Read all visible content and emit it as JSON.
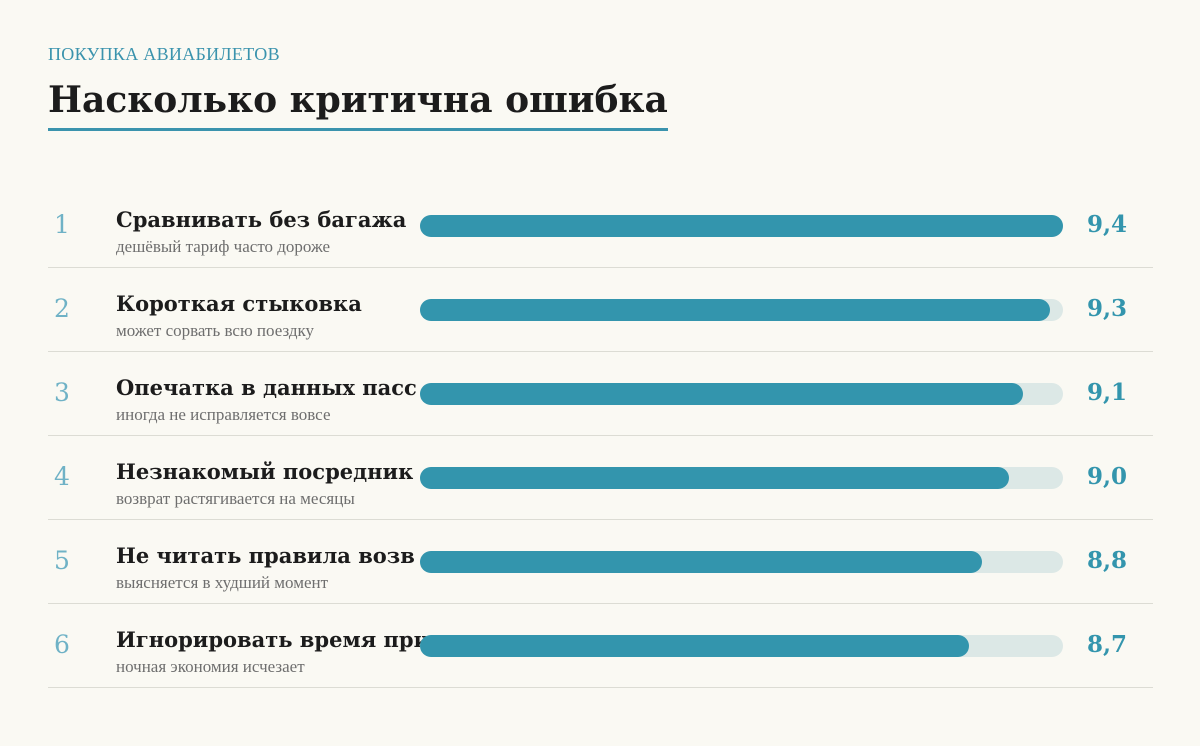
{
  "header": {
    "kicker": "ПОКУПКА АВИАБИЛЕТОВ",
    "title": "Насколько критична ошибка"
  },
  "colors": {
    "accent": "#3395ad",
    "track": "#dce8e6",
    "rank": "#6fb2c6",
    "background": "#faf9f3"
  },
  "chart_data": {
    "type": "bar",
    "orientation": "horizontal",
    "title": "Насколько критична ошибка",
    "xlim": [
      7.0,
      9.4
    ],
    "grid": false,
    "rows": [
      {
        "rank": "1",
        "label": "Сравнивать без багажа",
        "sub": "дешёвый тариф часто дороже",
        "value": 9.4,
        "value_label": "9,4"
      },
      {
        "rank": "2",
        "label": "Короткая стыковка",
        "sub": "может сорвать всю поездку",
        "value": 9.3,
        "value_label": "9,3"
      },
      {
        "rank": "3",
        "label": "Опечатка в данных пасс",
        "sub": "иногда не исправляется вовсе",
        "value": 9.1,
        "value_label": "9,1"
      },
      {
        "rank": "4",
        "label": "Незнакомый посредник",
        "sub": "возврат растягивается на месяцы",
        "value": 9.0,
        "value_label": "9,0"
      },
      {
        "rank": "5",
        "label": "Не читать правила возв",
        "sub": "выясняется в худший момент",
        "value": 8.8,
        "value_label": "8,8"
      },
      {
        "rank": "6",
        "label": "Игнорировать время при",
        "sub": "ночная экономия исчезает",
        "value": 8.7,
        "value_label": "8,7"
      }
    ]
  }
}
